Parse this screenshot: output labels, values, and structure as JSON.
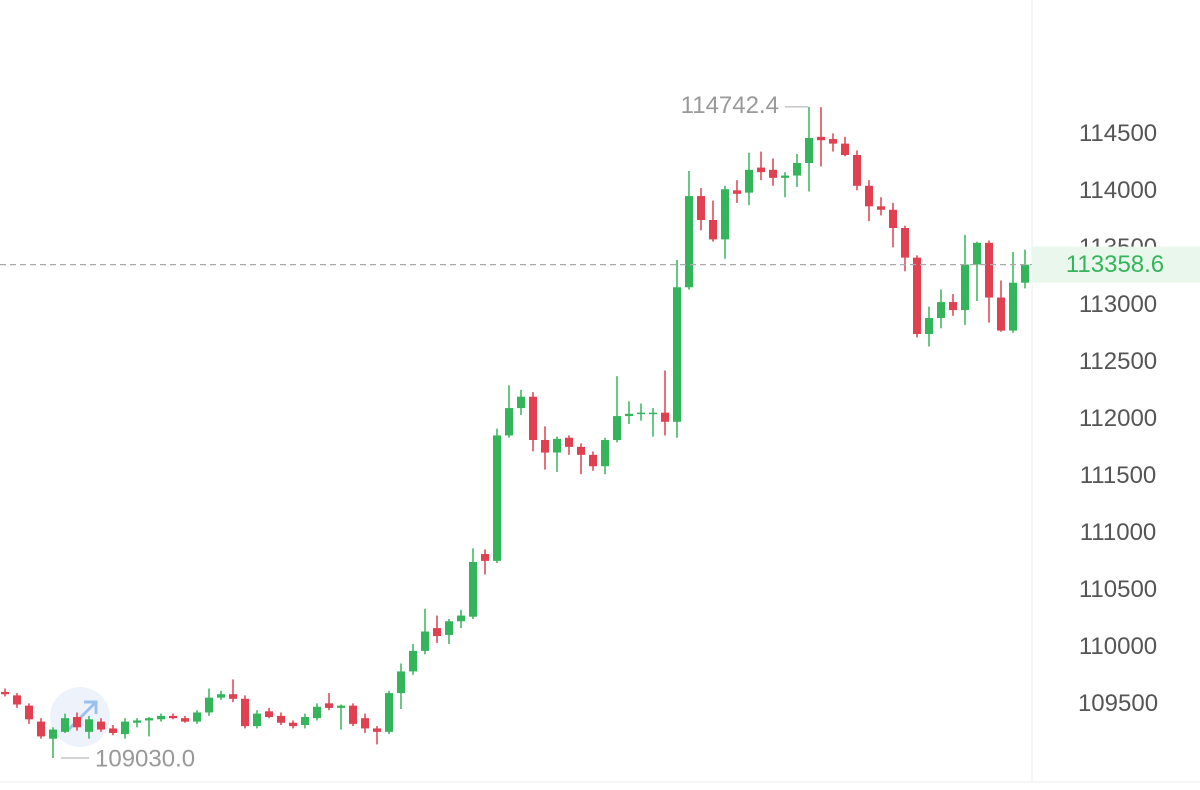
{
  "chart_data": {
    "type": "candlestick",
    "up_color": "#35b55b",
    "down_color": "#e0404f",
    "ylim": [
      108820,
      115680
    ],
    "yticks": [
      109500,
      110000,
      110500,
      111000,
      111500,
      112000,
      112500,
      113000,
      113500,
      114000,
      114500
    ],
    "max_label": 114742.4,
    "min_label": {
      "value": 109030,
      "label": "109030.0"
    },
    "last_price": 113358.6,
    "open": [
      109610,
      109580,
      109490,
      109350,
      109200,
      109260,
      109390,
      109260,
      109350,
      109290,
      109240,
      109340,
      109360,
      109370,
      109400,
      109380,
      109350,
      109430,
      109560,
      109590,
      109550,
      109310,
      109440,
      109400,
      109340,
      109320,
      109380,
      109510,
      109470,
      109490,
      109380,
      109290,
      109260,
      109600,
      109790,
      109970,
      110170,
      110110,
      110230,
      110270,
      110820,
      110760,
      111860,
      112100,
      112200,
      111820,
      111710,
      111840,
      111760,
      111690,
      111590,
      111820,
      112030,
      112050,
      112050,
      112060,
      111980,
      113160,
      113960,
      113750,
      113580,
      114010,
      113990,
      114210,
      114190,
      114120,
      114140,
      114250,
      114480,
      114460,
      114420,
      114320,
      114050,
      113870,
      113840,
      113680,
      113420,
      112750,
      112890,
      113030,
      112960,
      113360,
      113550,
      113070,
      112780,
      113200
    ],
    "high": [
      109640,
      109600,
      109510,
      109380,
      109300,
      109420,
      109430,
      109400,
      109380,
      109320,
      109380,
      109380,
      109390,
      109420,
      109420,
      109400,
      109450,
      109640,
      109620,
      109720,
      109580,
      109450,
      109470,
      109430,
      109360,
      109420,
      109510,
      109600,
      109500,
      109510,
      109420,
      109310,
      109620,
      109860,
      110030,
      110340,
      110280,
      110250,
      110330,
      110870,
      110860,
      111920,
      112300,
      112260,
      112240,
      111940,
      111850,
      111860,
      111790,
      111720,
      111840,
      112380,
      112160,
      112140,
      112100,
      112430,
      113400,
      114180,
      114030,
      113920,
      114050,
      114100,
      114340,
      114350,
      114290,
      114170,
      114330,
      114742.4,
      114740,
      114510,
      114480,
      114360,
      114100,
      113950,
      113900,
      113700,
      113440,
      112990,
      113140,
      113100,
      113620,
      113560,
      113570,
      113220,
      113470,
      113490
    ],
    "low": [
      109570,
      109470,
      109330,
      109200,
      109030,
      109250,
      109270,
      109200,
      109260,
      109230,
      109200,
      109300,
      109220,
      109350,
      109370,
      109340,
      109330,
      109400,
      109540,
      109520,
      109290,
      109290,
      109380,
      109320,
      109290,
      109290,
      109360,
      109450,
      109280,
      109310,
      109250,
      109150,
      109240,
      109460,
      109760,
      109940,
      110040,
      110030,
      110170,
      110250,
      110640,
      110740,
      111840,
      112040,
      111720,
      111560,
      111540,
      111690,
      111520,
      111550,
      111520,
      111800,
      111960,
      111990,
      111850,
      111860,
      111840,
      113140,
      113660,
      113560,
      113410,
      113900,
      113880,
      114100,
      114050,
      113950,
      114040,
      114000,
      114220,
      114350,
      114310,
      114010,
      113740,
      113790,
      113510,
      113300,
      112720,
      112640,
      112800,
      112910,
      112830,
      113040,
      112850,
      112770,
      112760,
      113150
    ],
    "close": [
      109590,
      109500,
      109370,
      109220,
      109280,
      109380,
      109300,
      109370,
      109280,
      109250,
      109350,
      109360,
      109380,
      109400,
      109380,
      109350,
      109430,
      109560,
      109590,
      109550,
      109310,
      109420,
      109390,
      109340,
      109310,
      109390,
      109480,
      109470,
      109490,
      109330,
      109290,
      109260,
      109600,
      109790,
      109970,
      110140,
      110100,
      110230,
      110280,
      110750,
      110760,
      111860,
      112100,
      112200,
      111820,
      111710,
      111830,
      111760,
      111690,
      111590,
      111820,
      112030,
      112050,
      112060,
      112060,
      111980,
      113160,
      113960,
      113750,
      113580,
      114020,
      113980,
      114190,
      114170,
      114120,
      114140,
      114250,
      114470,
      114450,
      114420,
      114320,
      114050,
      113870,
      113840,
      113680,
      113420,
      112750,
      112890,
      113030,
      112960,
      113360,
      113550,
      113070,
      112780,
      113200,
      113358.6
    ]
  }
}
